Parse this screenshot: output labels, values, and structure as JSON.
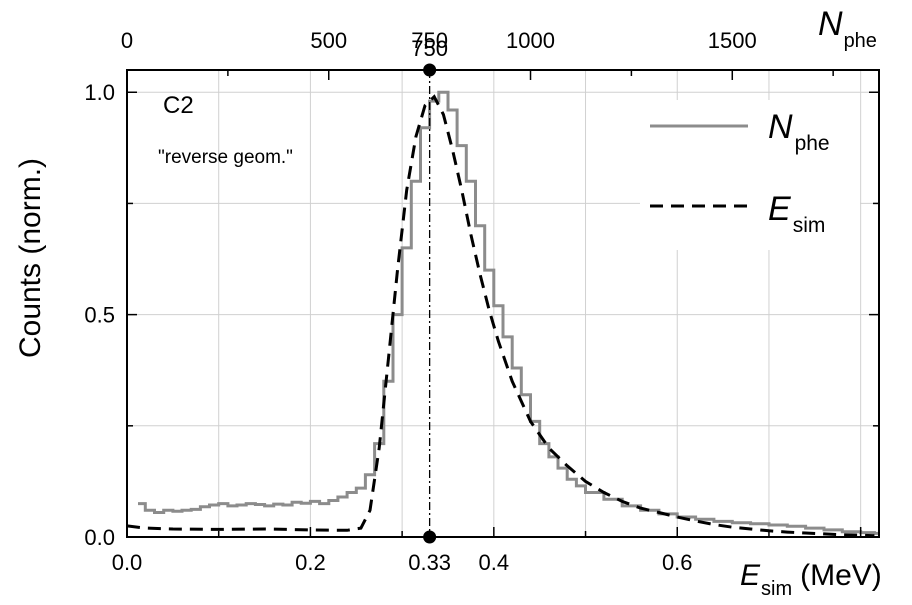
{
  "chart_data": {
    "type": "line",
    "xlabel": {
      "symbol": "E",
      "subscript": "sim",
      "unit": "(MeV)"
    },
    "ylabel": "Counts (norm.)",
    "top_axis_label": {
      "symbol": "N",
      "subscript": "phe"
    },
    "xlim": [
      0.0,
      0.82
    ],
    "ylim": [
      0.0,
      1.05
    ],
    "x_ticks": [
      0.0,
      0.2,
      0.4,
      0.6
    ],
    "x_tick_labels": [
      "0.0",
      "0.2",
      "0.4",
      "0.6"
    ],
    "y_ticks": [
      0.0,
      0.5,
      1.0
    ],
    "y_tick_labels": [
      "0.0",
      "0.5",
      "1.0"
    ],
    "top_ticks": [
      0,
      500,
      750,
      1000,
      1500
    ],
    "top_tick_labels": [
      "0",
      "500",
      "750",
      "1000",
      "1500"
    ],
    "top_axis_per_mev": 2272.7,
    "grid": true,
    "legend_position": "top-right",
    "marker": {
      "x": 0.33,
      "bottom_label": "0.33",
      "top_label": "750"
    },
    "annotations": [
      "C2",
      "\"reverse geom.\""
    ],
    "series": [
      {
        "name": "N_phe",
        "legend_symbol": "N",
        "legend_subscript": "phe",
        "style": "step",
        "color": "#8c8c8c",
        "points": [
          [
            0.012,
            0.075
          ],
          [
            0.02,
            0.06
          ],
          [
            0.03,
            0.055
          ],
          [
            0.04,
            0.06
          ],
          [
            0.05,
            0.058
          ],
          [
            0.06,
            0.06
          ],
          [
            0.07,
            0.062
          ],
          [
            0.08,
            0.068
          ],
          [
            0.09,
            0.072
          ],
          [
            0.1,
            0.075
          ],
          [
            0.11,
            0.07
          ],
          [
            0.12,
            0.072
          ],
          [
            0.13,
            0.075
          ],
          [
            0.14,
            0.073
          ],
          [
            0.15,
            0.07
          ],
          [
            0.16,
            0.074
          ],
          [
            0.17,
            0.072
          ],
          [
            0.18,
            0.078
          ],
          [
            0.19,
            0.076
          ],
          [
            0.2,
            0.08
          ],
          [
            0.21,
            0.075
          ],
          [
            0.22,
            0.082
          ],
          [
            0.23,
            0.09
          ],
          [
            0.24,
            0.1
          ],
          [
            0.25,
            0.11
          ],
          [
            0.26,
            0.14
          ],
          [
            0.27,
            0.21
          ],
          [
            0.28,
            0.35
          ],
          [
            0.29,
            0.5
          ],
          [
            0.3,
            0.65
          ],
          [
            0.31,
            0.8
          ],
          [
            0.32,
            0.92
          ],
          [
            0.33,
            0.98
          ],
          [
            0.34,
            1.0
          ],
          [
            0.35,
            0.96
          ],
          [
            0.36,
            0.88
          ],
          [
            0.37,
            0.8
          ],
          [
            0.38,
            0.7
          ],
          [
            0.39,
            0.6
          ],
          [
            0.4,
            0.52
          ],
          [
            0.41,
            0.45
          ],
          [
            0.42,
            0.38
          ],
          [
            0.43,
            0.32
          ],
          [
            0.44,
            0.26
          ],
          [
            0.45,
            0.21
          ],
          [
            0.46,
            0.18
          ],
          [
            0.47,
            0.155
          ],
          [
            0.48,
            0.13
          ],
          [
            0.49,
            0.115
          ],
          [
            0.5,
            0.1
          ],
          [
            0.52,
            0.085
          ],
          [
            0.54,
            0.07
          ],
          [
            0.56,
            0.06
          ],
          [
            0.58,
            0.052
          ],
          [
            0.6,
            0.045
          ],
          [
            0.62,
            0.04
          ],
          [
            0.64,
            0.035
          ],
          [
            0.66,
            0.032
          ],
          [
            0.68,
            0.03
          ],
          [
            0.7,
            0.027
          ],
          [
            0.72,
            0.024
          ],
          [
            0.74,
            0.02
          ],
          [
            0.76,
            0.016
          ],
          [
            0.78,
            0.012
          ],
          [
            0.8,
            0.01
          ],
          [
            0.815,
            0.008
          ]
        ]
      },
      {
        "name": "E_sim",
        "legend_symbol": "E",
        "legend_subscript": "sim",
        "style": "dashed",
        "color": "#000000",
        "points": [
          [
            0.0,
            0.025
          ],
          [
            0.02,
            0.02
          ],
          [
            0.05,
            0.018
          ],
          [
            0.1,
            0.017
          ],
          [
            0.15,
            0.018
          ],
          [
            0.2,
            0.016
          ],
          [
            0.24,
            0.015
          ],
          [
            0.255,
            0.02
          ],
          [
            0.265,
            0.06
          ],
          [
            0.275,
            0.2
          ],
          [
            0.285,
            0.4
          ],
          [
            0.295,
            0.6
          ],
          [
            0.305,
            0.78
          ],
          [
            0.315,
            0.9
          ],
          [
            0.325,
            0.97
          ],
          [
            0.335,
            0.99
          ],
          [
            0.345,
            0.95
          ],
          [
            0.355,
            0.87
          ],
          [
            0.365,
            0.78
          ],
          [
            0.375,
            0.68
          ],
          [
            0.385,
            0.59
          ],
          [
            0.395,
            0.51
          ],
          [
            0.405,
            0.44
          ],
          [
            0.42,
            0.35
          ],
          [
            0.44,
            0.26
          ],
          [
            0.46,
            0.2
          ],
          [
            0.48,
            0.16
          ],
          [
            0.5,
            0.125
          ],
          [
            0.52,
            0.1
          ],
          [
            0.54,
            0.08
          ],
          [
            0.56,
            0.065
          ],
          [
            0.58,
            0.055
          ],
          [
            0.6,
            0.045
          ],
          [
            0.62,
            0.036
          ],
          [
            0.64,
            0.028
          ],
          [
            0.66,
            0.022
          ],
          [
            0.68,
            0.018
          ],
          [
            0.7,
            0.014
          ],
          [
            0.72,
            0.011
          ],
          [
            0.74,
            0.009
          ],
          [
            0.76,
            0.007
          ],
          [
            0.78,
            0.005
          ],
          [
            0.8,
            0.004
          ],
          [
            0.815,
            0.003
          ]
        ]
      }
    ]
  }
}
